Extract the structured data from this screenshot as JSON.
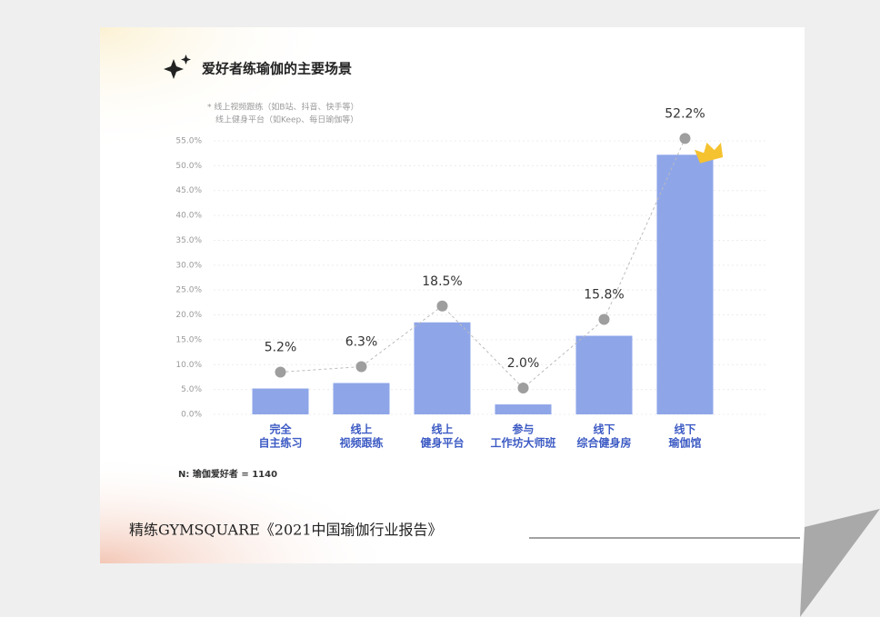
{
  "chart_data": {
    "type": "bar",
    "title": "爱好者练瑜伽的主要场景",
    "notes": [
      "* 线上视频跟练（如B站、抖音、快手等）",
      "线上健身平台（如Keep、每日瑜伽等）"
    ],
    "categories": [
      [
        "完全",
        "自主练习"
      ],
      [
        "线上",
        "视频跟练"
      ],
      [
        "线上",
        "健身平台"
      ],
      [
        "参与",
        "工作坊大师班"
      ],
      [
        "线下",
        "综合健身房"
      ],
      [
        "线下",
        "瑜伽馆"
      ]
    ],
    "values": [
      5.2,
      6.3,
      18.5,
      2.0,
      15.8,
      52.2
    ],
    "value_labels": [
      "5.2%",
      "6.3%",
      "18.5%",
      "2.0%",
      "15.8%",
      "52.2%"
    ],
    "color": "#8ea5e8",
    "ylim": [
      0,
      55
    ],
    "yticks": [
      {
        "value": 0,
        "label": "0.0%"
      },
      {
        "value": 5,
        "label": "5.0%"
      },
      {
        "value": 10,
        "label": "10.0%"
      },
      {
        "value": 15,
        "label": "15.0%"
      },
      {
        "value": 20,
        "label": "20.0%"
      },
      {
        "value": 25,
        "label": "25.0%"
      },
      {
        "value": 30,
        "label": "30.0%"
      },
      {
        "value": 35,
        "label": "35.0%"
      },
      {
        "value": 40,
        "label": "40.0%"
      },
      {
        "value": 45,
        "label": "45.0%"
      },
      {
        "value": 50,
        "label": "50.0%"
      },
      {
        "value": 55,
        "label": "55.0%"
      }
    ],
    "grid": true,
    "sample_note": "N: 瑜伽爱好者 = 1140",
    "footer": "精练GYMSQUARE《2021中国瑜伽行业报告》"
  }
}
